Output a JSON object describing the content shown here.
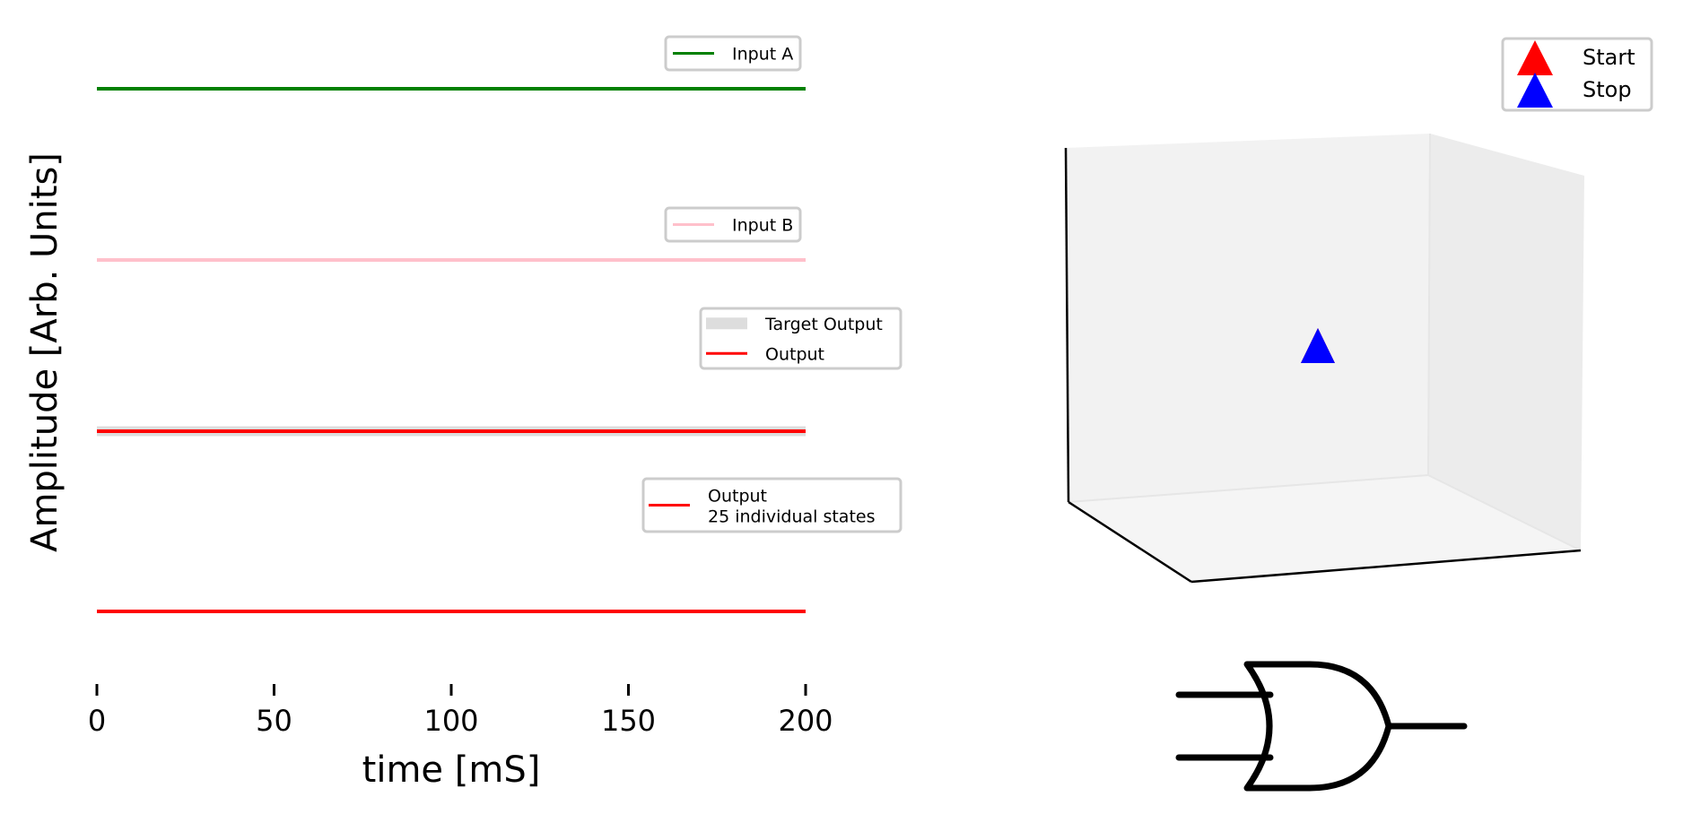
{
  "chart_data": [
    {
      "type": "line",
      "title": "",
      "xlabel": "time [mS]",
      "ylabel": "Amplitude [Arb. Units]",
      "xlim": [
        0,
        200
      ],
      "x_ticks": [
        0,
        50,
        100,
        150,
        200
      ],
      "grid": false,
      "panels": [
        {
          "legend": [
            "Input A"
          ],
          "legend_position": "upper-right",
          "series": [
            {
              "name": "Input A",
              "color": "#008000",
              "x": [
                0,
                200
              ],
              "y": [
                0,
                0
              ]
            }
          ]
        },
        {
          "legend": [
            "Input B"
          ],
          "legend_position": "upper-right",
          "series": [
            {
              "name": "Input B",
              "color": "#ffc0cb",
              "x": [
                0,
                200
              ],
              "y": [
                0,
                0
              ]
            }
          ]
        },
        {
          "legend": [
            "Target Output",
            "Output"
          ],
          "legend_position": "upper-right",
          "series": [
            {
              "name": "Target Output",
              "color": "#dddddd",
              "x": [
                0,
                200
              ],
              "y": [
                0,
                0
              ]
            },
            {
              "name": "Output",
              "color": "#ff0000",
              "x": [
                0,
                200
              ],
              "y": [
                0,
                0
              ]
            }
          ]
        },
        {
          "legend": [
            "Output\n25 individual states"
          ],
          "legend_position": "upper-right",
          "series": [
            {
              "name": "Output\n25 individual states",
              "color": "#ff0000",
              "x": [
                0,
                200
              ],
              "y": [
                0,
                0
              ]
            }
          ]
        }
      ]
    },
    {
      "type": "scatter",
      "projection": "3d",
      "axes_visible": false,
      "legend_position": "upper-right",
      "series": [
        {
          "name": "Start",
          "marker": "triangle-up",
          "color": "#ff0000"
        },
        {
          "name": "Stop",
          "marker": "triangle-up",
          "color": "#0000ff"
        }
      ]
    }
  ],
  "icons": {
    "logic_gate": "or-gate-icon"
  }
}
